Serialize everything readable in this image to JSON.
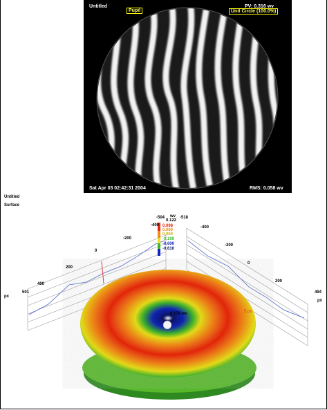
{
  "interferogram": {
    "title": "Untitled",
    "pupil_label": "Pupil",
    "pv_label": "PV: 0.316 wv",
    "unit_circle_label": "Unit Circle (100.0%)",
    "timestamp": "Sat Apr 03 02:42:31 2004",
    "rms_label": "RMS: 0.058 wv"
  },
  "surface_panel": {
    "title": "Untitled",
    "subtitle": "Surface",
    "left_axis_ticks": [
      "-504",
      "-400",
      "-200",
      "0",
      "200",
      "400",
      "501"
    ],
    "right_axis_ticks": [
      "-518",
      "-400",
      "-200",
      "0",
      "200",
      "494"
    ],
    "axis_unit_left": "px",
    "axis_unit_right": "px",
    "legend_unit": "wv",
    "legend_values": [
      "0.122",
      "0.098",
      "0.080",
      "0.060",
      "-0.100",
      "-0.600",
      "-0.610"
    ],
    "marker_value": "0.178 wv",
    "marker_px": "5 px",
    "colors": {
      "red": "#e8260f",
      "orange": "#f28a1a",
      "yellow": "#e8e01a",
      "green": "#3fb52b",
      "blue": "#1226b8",
      "navy": "#081466"
    }
  }
}
